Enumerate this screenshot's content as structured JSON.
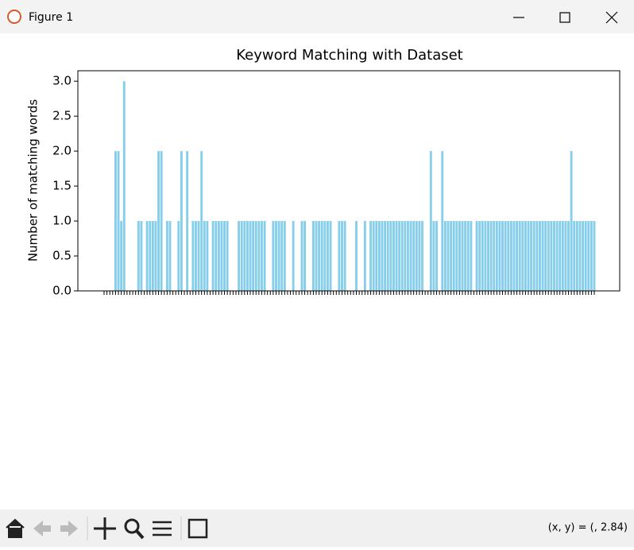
{
  "window": {
    "title": "Figure 1",
    "status": "(x, y) = (, 2.84)"
  },
  "chart_data": {
    "type": "bar",
    "title": "Keyword Matching with Dataset",
    "y_label": "Number of matching words",
    "color": "#87ceeb",
    "ylim": [
      0,
      3.15
    ],
    "yticks": [
      {
        "value": 0,
        "label": "0.0"
      },
      {
        "value": 0.5,
        "label": "0.5"
      },
      {
        "value": 1,
        "label": "1.0"
      },
      {
        "value": 1.5,
        "label": "1.5"
      },
      {
        "value": 2,
        "label": "2.0"
      },
      {
        "value": 2.5,
        "label": "2.5"
      },
      {
        "value": 3,
        "label": "3.0"
      }
    ],
    "categories": [
      null,
      null,
      null,
      null,
      null,
      null,
      null,
      null,
      null,
      null,
      null,
      null,
      null,
      null,
      null,
      null,
      null,
      null,
      null,
      null,
      null,
      null,
      null,
      null,
      null,
      null,
      null,
      null,
      null,
      null,
      null,
      null,
      null,
      null,
      null,
      null,
      null,
      null,
      null,
      null,
      null,
      null,
      null,
      null,
      null,
      null,
      null,
      null,
      null,
      null,
      null,
      null,
      null,
      null,
      null,
      null,
      null,
      null,
      null,
      null,
      null,
      null,
      null,
      null,
      null,
      null,
      null,
      null,
      null,
      null,
      null,
      null,
      null,
      null,
      null,
      null,
      null,
      null,
      null,
      null,
      null,
      null,
      null,
      null,
      null,
      null,
      null,
      null,
      null,
      null,
      null,
      null,
      null,
      null,
      null,
      null,
      null,
      null,
      null,
      null,
      null,
      null,
      null,
      null,
      null,
      null,
      null,
      null,
      null,
      null,
      null,
      null,
      null,
      null,
      null,
      null,
      null,
      null,
      null,
      null,
      null,
      null,
      null,
      null,
      null,
      null,
      null,
      null,
      null,
      null,
      null,
      null,
      null,
      null,
      null,
      null,
      null,
      null,
      null,
      null,
      null,
      null,
      null,
      null,
      null,
      null,
      null,
      null,
      null,
      null,
      null,
      null,
      null,
      null,
      null,
      null,
      null,
      null,
      null,
      null,
      null,
      null,
      null,
      null,
      null,
      null,
      null,
      null,
      null,
      null,
      null,
      null
    ],
    "values": [
      0,
      0,
      0,
      0,
      2,
      2,
      1,
      3,
      0,
      0,
      0,
      0,
      1,
      1,
      0,
      1,
      1,
      1,
      1,
      2,
      2,
      0,
      1,
      1,
      0,
      0,
      1,
      2,
      0,
      2,
      0,
      1,
      1,
      1,
      2,
      1,
      1,
      0,
      1,
      1,
      1,
      1,
      1,
      1,
      0,
      0,
      0,
      1,
      1,
      1,
      1,
      1,
      1,
      1,
      1,
      1,
      1,
      0,
      0,
      1,
      1,
      1,
      1,
      1,
      0,
      0,
      1,
      0,
      0,
      1,
      1,
      0,
      0,
      1,
      1,
      1,
      1,
      1,
      1,
      1,
      0,
      0,
      1,
      1,
      1,
      0,
      0,
      0,
      1,
      0,
      0,
      1,
      0,
      1,
      1,
      1,
      1,
      1,
      1,
      1,
      1,
      1,
      1,
      1,
      1,
      1,
      1,
      1,
      1,
      1,
      1,
      1,
      0,
      0,
      2,
      1,
      1,
      0,
      2,
      1,
      1,
      1,
      1,
      1,
      1,
      1,
      1,
      1,
      1,
      0,
      1,
      1,
      1,
      1,
      1,
      1,
      1,
      1,
      1,
      1,
      1,
      1,
      1,
      1,
      1,
      1,
      1,
      1,
      1,
      1,
      1,
      1,
      1,
      1,
      1,
      1,
      1,
      1,
      1,
      1,
      1,
      1,
      1,
      2,
      1,
      1,
      1,
      1,
      1,
      1,
      1,
      1
    ]
  }
}
